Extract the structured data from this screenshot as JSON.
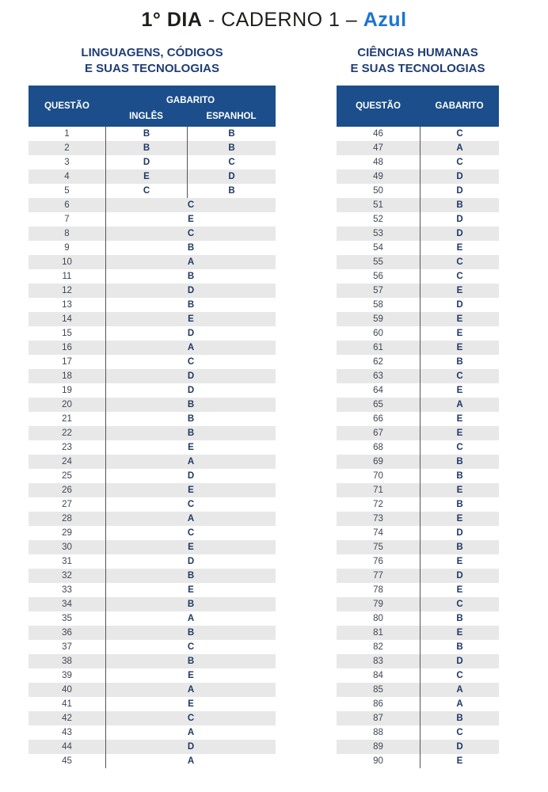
{
  "title": {
    "day": "1° DIA",
    "middle": " - CADERNO 1 – ",
    "color_word": "Azul"
  },
  "left_table": {
    "title_line1": "LINGUAGENS, CÓDIGOS",
    "title_line2": "E SUAS TECNOLOGIAS",
    "headers": {
      "questao": "QUESTÃO",
      "gabarito": "GABARITO",
      "ingles": "INGLÊS",
      "espanhol": "ESPANHOL"
    },
    "dual_rows": [
      {
        "q": "1",
        "ingles": "B",
        "espanhol": "B"
      },
      {
        "q": "2",
        "ingles": "B",
        "espanhol": "B"
      },
      {
        "q": "3",
        "ingles": "D",
        "espanhol": "C"
      },
      {
        "q": "4",
        "ingles": "E",
        "espanhol": "D"
      },
      {
        "q": "5",
        "ingles": "C",
        "espanhol": "B"
      }
    ],
    "single_rows": [
      {
        "q": "6",
        "ans": "C"
      },
      {
        "q": "7",
        "ans": "E"
      },
      {
        "q": "8",
        "ans": "C"
      },
      {
        "q": "9",
        "ans": "B"
      },
      {
        "q": "10",
        "ans": "A"
      },
      {
        "q": "11",
        "ans": "B"
      },
      {
        "q": "12",
        "ans": "D"
      },
      {
        "q": "13",
        "ans": "B"
      },
      {
        "q": "14",
        "ans": "E"
      },
      {
        "q": "15",
        "ans": "D"
      },
      {
        "q": "16",
        "ans": "A"
      },
      {
        "q": "17",
        "ans": "C"
      },
      {
        "q": "18",
        "ans": "D"
      },
      {
        "q": "19",
        "ans": "D"
      },
      {
        "q": "20",
        "ans": "B"
      },
      {
        "q": "21",
        "ans": "B"
      },
      {
        "q": "22",
        "ans": "B"
      },
      {
        "q": "23",
        "ans": "E"
      },
      {
        "q": "24",
        "ans": "A"
      },
      {
        "q": "25",
        "ans": "D"
      },
      {
        "q": "26",
        "ans": "E"
      },
      {
        "q": "27",
        "ans": "C"
      },
      {
        "q": "28",
        "ans": "A"
      },
      {
        "q": "29",
        "ans": "C"
      },
      {
        "q": "30",
        "ans": "E"
      },
      {
        "q": "31",
        "ans": "D"
      },
      {
        "q": "32",
        "ans": "B"
      },
      {
        "q": "33",
        "ans": "E"
      },
      {
        "q": "34",
        "ans": "B"
      },
      {
        "q": "35",
        "ans": "A"
      },
      {
        "q": "36",
        "ans": "B"
      },
      {
        "q": "37",
        "ans": "C"
      },
      {
        "q": "38",
        "ans": "B"
      },
      {
        "q": "39",
        "ans": "E"
      },
      {
        "q": "40",
        "ans": "A"
      },
      {
        "q": "41",
        "ans": "E"
      },
      {
        "q": "42",
        "ans": "C"
      },
      {
        "q": "43",
        "ans": "A"
      },
      {
        "q": "44",
        "ans": "D"
      },
      {
        "q": "45",
        "ans": "A"
      }
    ]
  },
  "right_table": {
    "title_line1": "CIÊNCIAS HUMANAS",
    "title_line2": "E SUAS TECNOLOGIAS",
    "headers": {
      "questao": "QUESTÃO",
      "gabarito": "GABARITO"
    },
    "rows": [
      {
        "q": "46",
        "ans": "C"
      },
      {
        "q": "47",
        "ans": "A"
      },
      {
        "q": "48",
        "ans": "C"
      },
      {
        "q": "49",
        "ans": "D"
      },
      {
        "q": "50",
        "ans": "D"
      },
      {
        "q": "51",
        "ans": "B"
      },
      {
        "q": "52",
        "ans": "D"
      },
      {
        "q": "53",
        "ans": "D"
      },
      {
        "q": "54",
        "ans": "E"
      },
      {
        "q": "55",
        "ans": "C"
      },
      {
        "q": "56",
        "ans": "C"
      },
      {
        "q": "57",
        "ans": "E"
      },
      {
        "q": "58",
        "ans": "D"
      },
      {
        "q": "59",
        "ans": "E"
      },
      {
        "q": "60",
        "ans": "E"
      },
      {
        "q": "61",
        "ans": "E"
      },
      {
        "q": "62",
        "ans": "B"
      },
      {
        "q": "63",
        "ans": "C"
      },
      {
        "q": "64",
        "ans": "E"
      },
      {
        "q": "65",
        "ans": "A"
      },
      {
        "q": "66",
        "ans": "E"
      },
      {
        "q": "67",
        "ans": "E"
      },
      {
        "q": "68",
        "ans": "C"
      },
      {
        "q": "69",
        "ans": "B"
      },
      {
        "q": "70",
        "ans": "B"
      },
      {
        "q": "71",
        "ans": "E"
      },
      {
        "q": "72",
        "ans": "B"
      },
      {
        "q": "73",
        "ans": "E"
      },
      {
        "q": "74",
        "ans": "D"
      },
      {
        "q": "75",
        "ans": "B"
      },
      {
        "q": "76",
        "ans": "E"
      },
      {
        "q": "77",
        "ans": "D"
      },
      {
        "q": "78",
        "ans": "E"
      },
      {
        "q": "79",
        "ans": "C"
      },
      {
        "q": "80",
        "ans": "B"
      },
      {
        "q": "81",
        "ans": "E"
      },
      {
        "q": "82",
        "ans": "B"
      },
      {
        "q": "83",
        "ans": "D"
      },
      {
        "q": "84",
        "ans": "C"
      },
      {
        "q": "85",
        "ans": "A"
      },
      {
        "q": "86",
        "ans": "A"
      },
      {
        "q": "87",
        "ans": "B"
      },
      {
        "q": "88",
        "ans": "C"
      },
      {
        "q": "89",
        "ans": "D"
      },
      {
        "q": "90",
        "ans": "E"
      }
    ]
  },
  "colors": {
    "header_bg": "#1b4e8a",
    "accent_blue": "#1b74d1",
    "navy_text": "#1f3d75",
    "answer_color": "#1f3864",
    "stripe": "#e8e8e8"
  }
}
